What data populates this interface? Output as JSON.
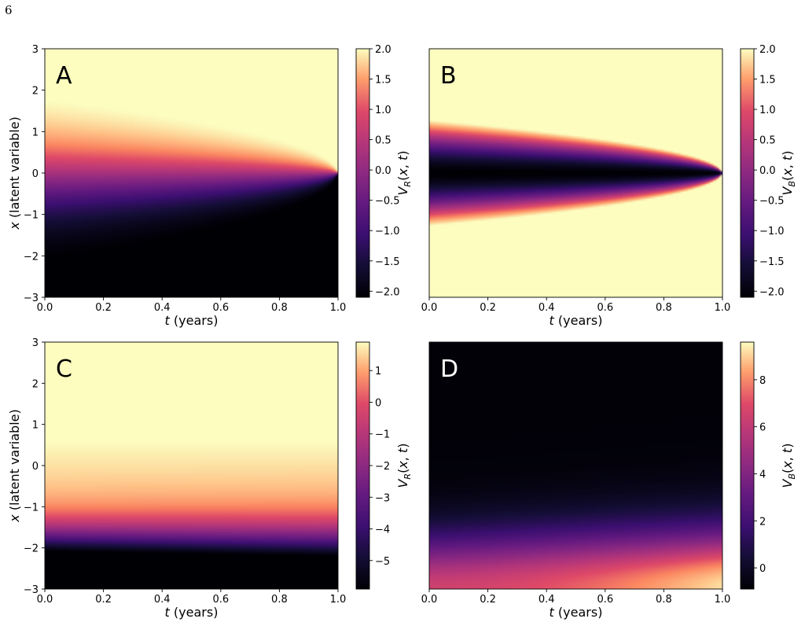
{
  "page_number": "6",
  "chart_data": [
    {
      "type": "heatmap",
      "panel_label": "A",
      "xlabel": "t (years)",
      "ylabel": "x (latent variable)",
      "colorbar_label": "V_R(x, t)",
      "colormap": "magma",
      "xlim": [
        0.0,
        1.0
      ],
      "ylim": [
        -3,
        3
      ],
      "clim": [
        -2.1,
        2.0
      ],
      "xticks": [
        "0.0",
        "0.2",
        "0.4",
        "0.6",
        "0.8",
        "1.0"
      ],
      "yticks": [
        "−3",
        "−2",
        "−1",
        "0",
        "1",
        "2",
        "3"
      ],
      "cbar_ticks": [
        -2.0,
        -1.5,
        -1.0,
        -0.5,
        0.0,
        0.5,
        1.0,
        1.5,
        2.0
      ],
      "cbar_tick_labels": [
        "−2.0",
        "−1.5",
        "−1.0",
        "−0.5",
        "0.0",
        "0.5",
        "1.0",
        "1.5",
        "2.0"
      ]
    },
    {
      "type": "heatmap",
      "panel_label": "B",
      "xlabel": "t (years)",
      "ylabel": "",
      "colorbar_label": "V_B(x, t)",
      "colormap": "magma",
      "xlim": [
        0.0,
        1.0
      ],
      "ylim": [
        -3,
        3
      ],
      "clim": [
        -2.1,
        2.0
      ],
      "xticks": [
        "0.0",
        "0.2",
        "0.4",
        "0.6",
        "0.8",
        "1.0"
      ],
      "yticks": [],
      "cbar_ticks": [
        -2.0,
        -1.5,
        -1.0,
        -0.5,
        0.0,
        0.5,
        1.0,
        1.5,
        2.0
      ],
      "cbar_tick_labels": [
        "−2.0",
        "−1.5",
        "−1.0",
        "−0.5",
        "0.0",
        "0.5",
        "1.0",
        "1.5",
        "2.0"
      ]
    },
    {
      "type": "heatmap",
      "panel_label": "C",
      "xlabel": "t (years)",
      "ylabel": "x (latent variable)",
      "colorbar_label": "V_R(x, t)",
      "colormap": "magma",
      "xlim": [
        0.0,
        1.0
      ],
      "ylim": [
        -3,
        3
      ],
      "clim": [
        -5.9,
        1.9
      ],
      "xticks": [
        "0.0",
        "0.2",
        "0.4",
        "0.6",
        "0.8",
        "1.0"
      ],
      "yticks": [
        "−3",
        "−2",
        "−1",
        "0",
        "1",
        "2",
        "3"
      ],
      "cbar_ticks": [
        -5,
        -4,
        -3,
        -2,
        -1,
        0,
        1
      ],
      "cbar_tick_labels": [
        "−5",
        "−4",
        "−3",
        "−2",
        "−1",
        "0",
        "1"
      ]
    },
    {
      "type": "heatmap",
      "panel_label": "D",
      "xlabel": "t (years)",
      "ylabel": "",
      "colorbar_label": "V_B(x, t)",
      "colormap": "magma",
      "xlim": [
        0.0,
        1.0
      ],
      "ylim": [
        -3,
        3
      ],
      "clim": [
        -0.9,
        9.6
      ],
      "xticks": [
        "0.0",
        "0.2",
        "0.4",
        "0.6",
        "0.8",
        "1.0"
      ],
      "yticks": [],
      "cbar_ticks": [
        0,
        2,
        4,
        6,
        8
      ],
      "cbar_tick_labels": [
        "0",
        "2",
        "4",
        "6",
        "8"
      ]
    }
  ]
}
